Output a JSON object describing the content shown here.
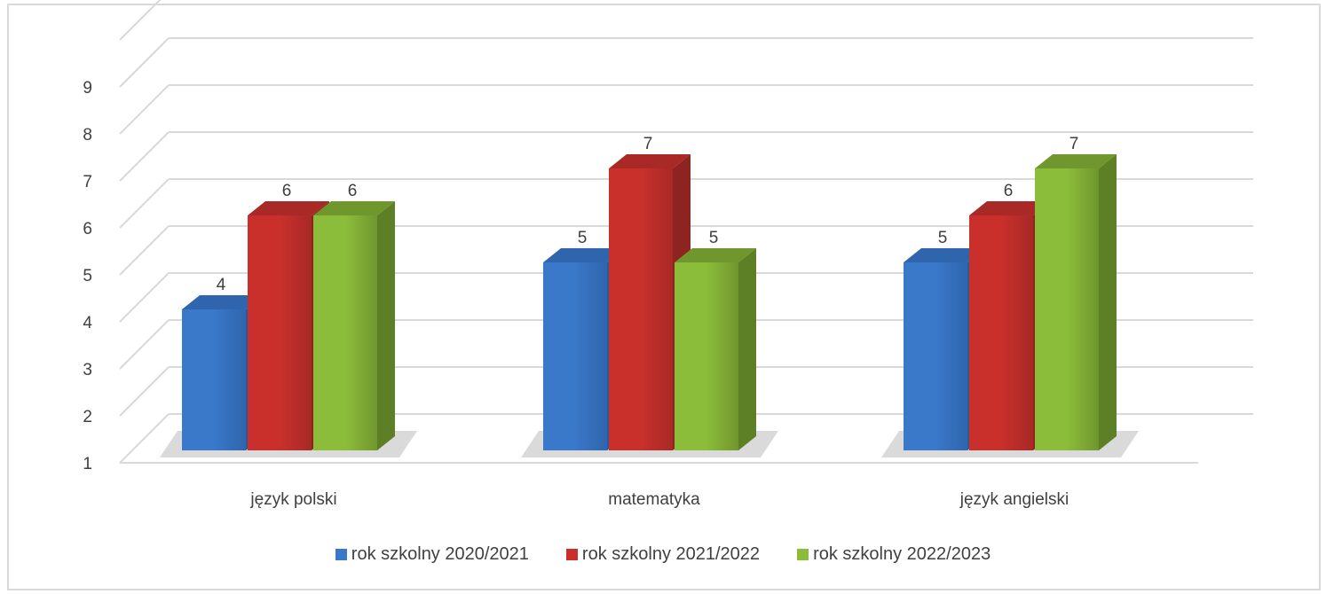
{
  "chart_data": {
    "type": "bar",
    "categories": [
      "język polski",
      "matematyka",
      "język angielski"
    ],
    "series": [
      {
        "name": "rok szkolny 2020/2021",
        "values": [
          4,
          5,
          5
        ],
        "color": "#3a78c9",
        "side": "#2a5a9a",
        "top": "#2f65ad"
      },
      {
        "name": "rok szkolny 2021/2022",
        "values": [
          6,
          7,
          6
        ],
        "color": "#c9302c",
        "side": "#8e2421",
        "top": "#a82926"
      },
      {
        "name": "rok szkolny 2022/2023",
        "values": [
          6,
          5,
          7
        ],
        "color": "#8cbd3a",
        "side": "#5d7f26",
        "top": "#70962e"
      }
    ],
    "yticks": [
      1,
      2,
      3,
      4,
      5,
      6,
      7,
      8,
      9
    ],
    "ylim": [
      1,
      10
    ],
    "grid": true,
    "legend": "bottom",
    "style": "3d-clustered-column"
  }
}
